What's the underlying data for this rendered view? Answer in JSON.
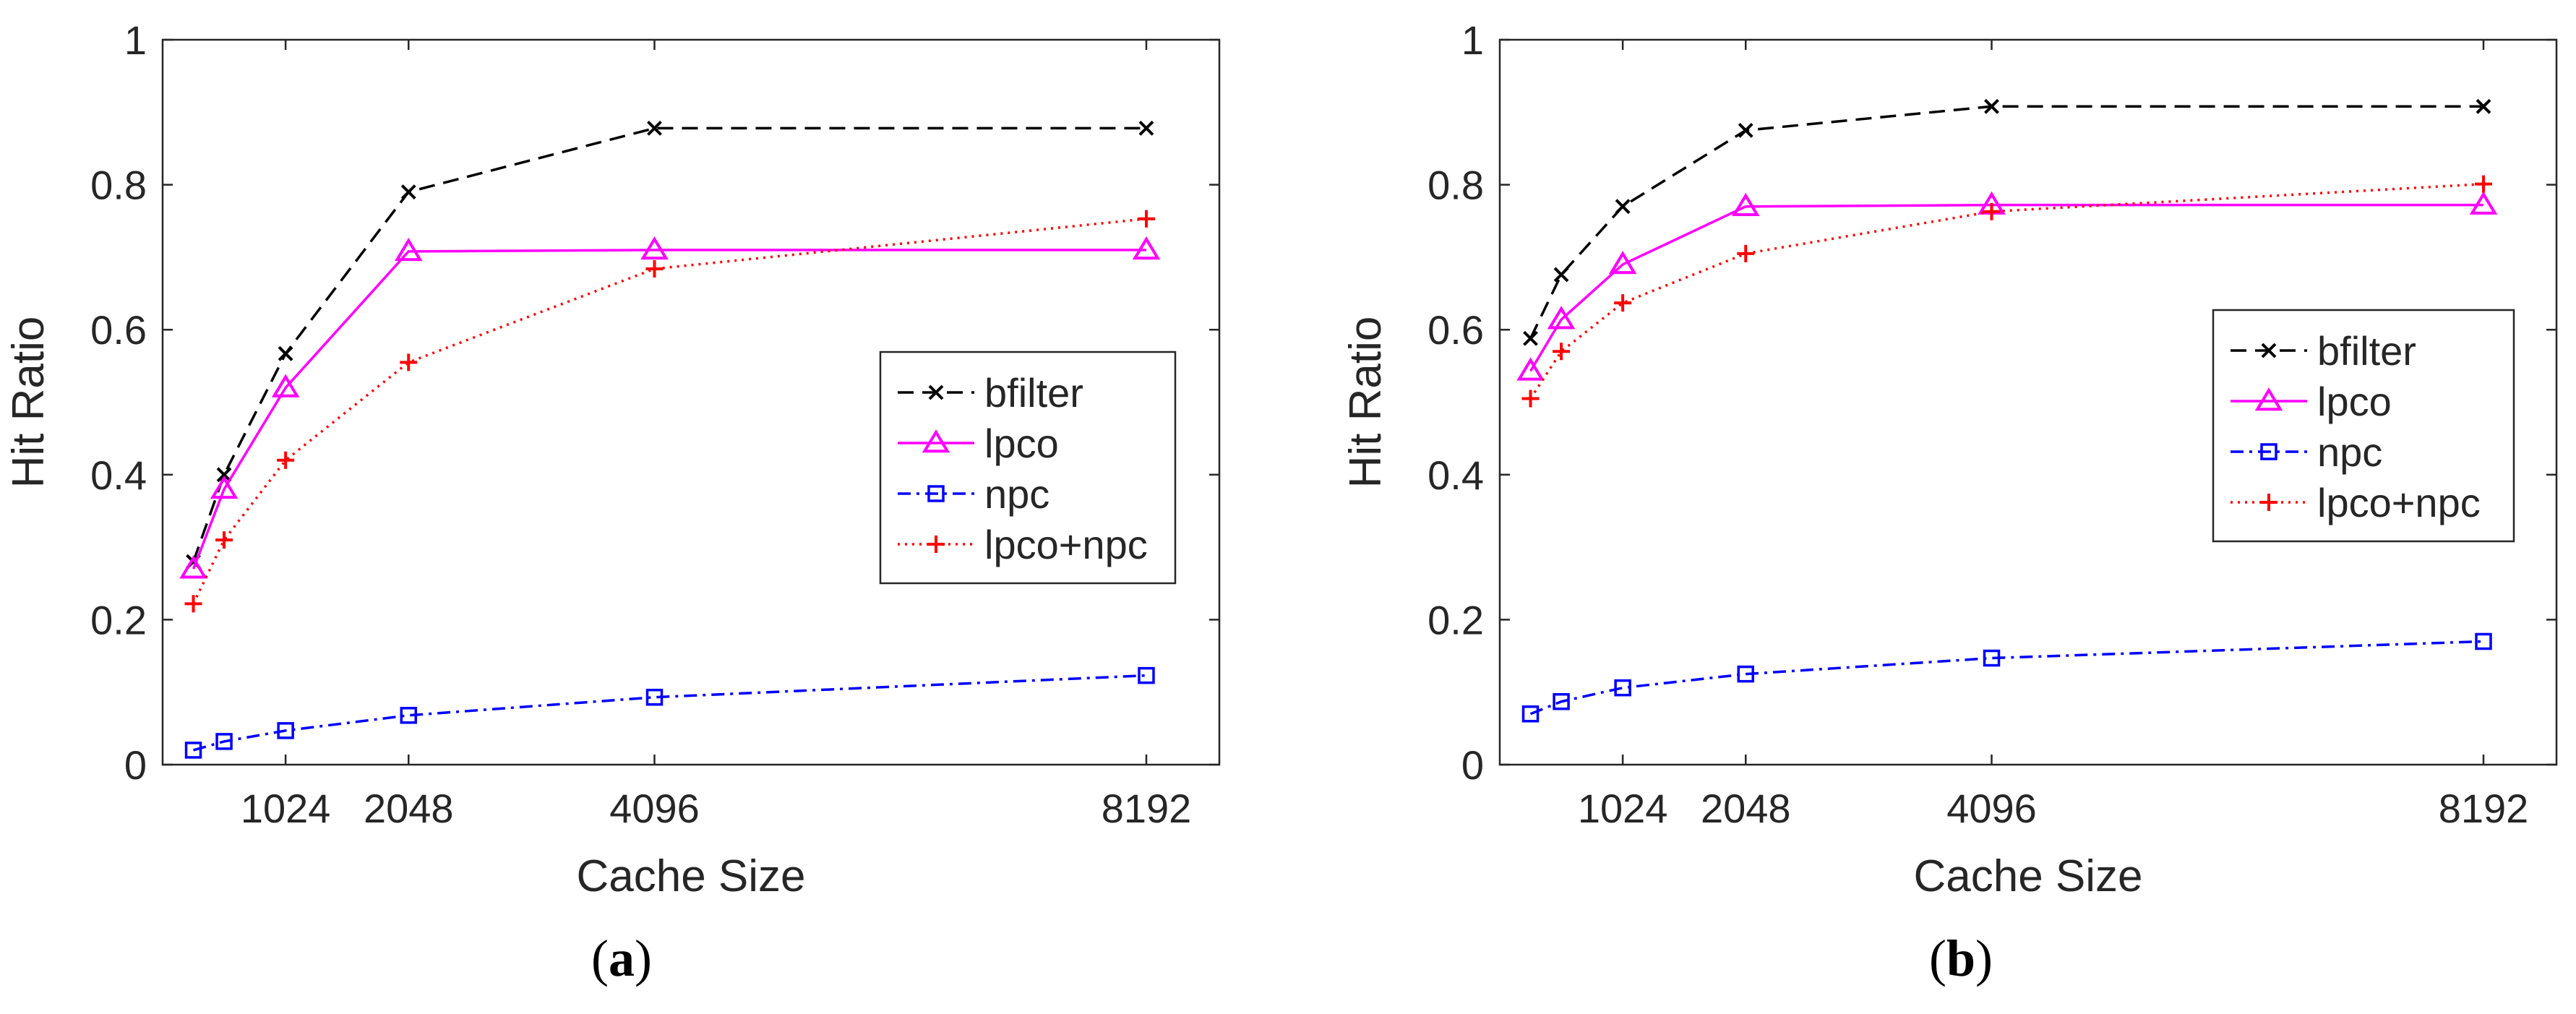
{
  "chart_data": [
    {
      "type": "line",
      "panel": "a",
      "xlabel": "Cache Size",
      "ylabel": "Hit Ratio",
      "xlim": [
        0,
        8800
      ],
      "ylim": [
        0,
        1
      ],
      "xticks": [
        1024,
        2048,
        4096,
        8192
      ],
      "yticks": [
        0,
        0.2,
        0.4,
        0.6,
        0.8,
        1
      ],
      "ytick_labels": [
        "0",
        "0.2",
        "0.4",
        "0.6",
        "0.8",
        "1"
      ],
      "grid": false,
      "legend": "center-right",
      "x": [
        256,
        512,
        1024,
        2048,
        4096,
        8192
      ],
      "series": [
        {
          "name": "bfilter",
          "color": "#000000",
          "marker": "x",
          "dash": "22,12",
          "values": [
            0.28,
            0.4,
            0.567,
            0.79,
            0.878,
            0.878
          ]
        },
        {
          "name": "lpco",
          "color": "#ff00ff",
          "marker": "triangle",
          "dash": "",
          "values": [
            0.27,
            0.38,
            0.52,
            0.708,
            0.71,
            0.71
          ]
        },
        {
          "name": "npc",
          "color": "#0000ff",
          "marker": "square",
          "dash": "18,8,4,8",
          "values": [
            0.02,
            0.032,
            0.047,
            0.068,
            0.093,
            0.123
          ]
        },
        {
          "name": "lpco+npc",
          "color": "#ff0000",
          "marker": "plus",
          "dash": "3,7",
          "values": [
            0.222,
            0.31,
            0.42,
            0.555,
            0.684,
            0.753
          ]
        }
      ]
    },
    {
      "type": "line",
      "panel": "b",
      "xlabel": "Cache Size",
      "ylabel": "Hit Ratio",
      "xlim": [
        0,
        8800
      ],
      "ylim": [
        0,
        1
      ],
      "xticks": [
        1024,
        2048,
        4096,
        8192
      ],
      "yticks": [
        0,
        0.2,
        0.4,
        0.6,
        0.8,
        1
      ],
      "ytick_labels": [
        "0",
        "0.2",
        "0.4",
        "0.6",
        "0.8",
        "1"
      ],
      "grid": false,
      "legend": "center-right",
      "x": [
        256,
        512,
        1024,
        2048,
        4096,
        8192
      ],
      "series": [
        {
          "name": "bfilter",
          "color": "#000000",
          "marker": "x",
          "dash": "22,12",
          "values": [
            0.588,
            0.676,
            0.77,
            0.875,
            0.908,
            0.908
          ]
        },
        {
          "name": "lpco",
          "color": "#ff00ff",
          "marker": "triangle",
          "dash": "",
          "values": [
            0.543,
            0.614,
            0.69,
            0.77,
            0.772,
            0.772
          ]
        },
        {
          "name": "npc",
          "color": "#0000ff",
          "marker": "square",
          "dash": "18,8,4,8",
          "values": [
            0.07,
            0.087,
            0.106,
            0.125,
            0.147,
            0.17
          ]
        },
        {
          "name": "lpco+npc",
          "color": "#ff0000",
          "marker": "plus",
          "dash": "3,7",
          "values": [
            0.505,
            0.57,
            0.637,
            0.705,
            0.763,
            0.801
          ]
        }
      ]
    }
  ],
  "panel_labels": {
    "a": {
      "open": "(",
      "letter": "a",
      "close": ")"
    },
    "b": {
      "open": "(",
      "letter": "b",
      "close": ")"
    }
  }
}
